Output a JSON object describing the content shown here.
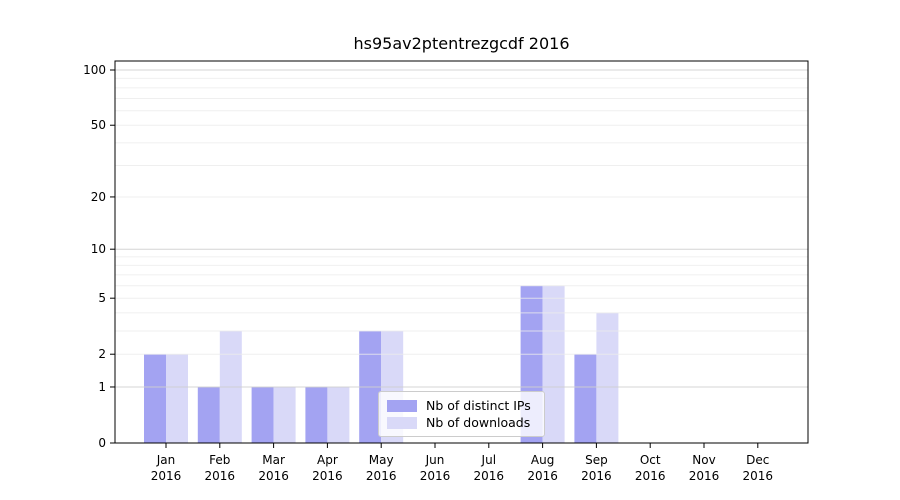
{
  "chart_data": {
    "type": "bar",
    "title": "hs95av2ptentrezgcdf 2016",
    "categories": [
      "Jan",
      "Feb",
      "Mar",
      "Apr",
      "May",
      "Jun",
      "Jul",
      "Aug",
      "Sep",
      "Oct",
      "Nov",
      "Dec"
    ],
    "xtick_year": "2016",
    "series": [
      {
        "name": "Nb of distinct IPs",
        "color": "#a3a3f2",
        "values": [
          2,
          1,
          1,
          1,
          3,
          0,
          0,
          6,
          2,
          0,
          0,
          0
        ]
      },
      {
        "name": "Nb of downloads",
        "color": "#d9d9f8",
        "values": [
          2,
          3,
          1,
          1,
          3,
          0,
          0,
          6,
          4,
          0,
          0,
          0
        ]
      }
    ],
    "yticks": [
      0,
      1,
      2,
      5,
      10,
      20,
      50,
      100
    ],
    "minor_grid_values": [
      3,
      4,
      6,
      7,
      8,
      9,
      30,
      40,
      60,
      70,
      80,
      90
    ],
    "major_grid_values": [
      1,
      10,
      100
    ],
    "y_scale": "log10(1+y)",
    "ylim": [
      0,
      100
    ],
    "grid": true,
    "legend_position": "lower center inside axes",
    "colors": {
      "major_grid": "#d0d0d0",
      "minor_grid": "#ececec",
      "axis": "#000000",
      "tick_label": "#000000",
      "background": "#ffffff"
    }
  }
}
